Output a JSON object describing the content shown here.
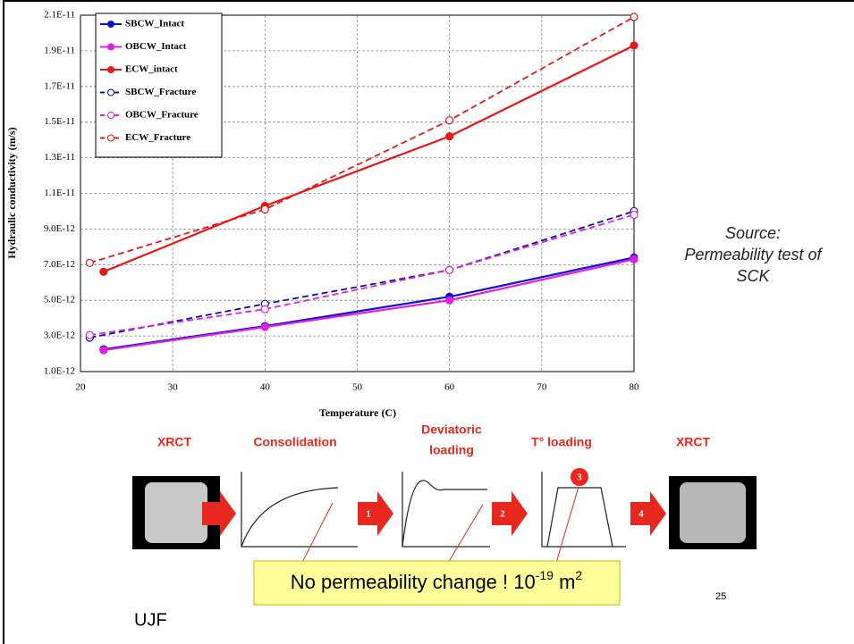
{
  "chart_data": {
    "type": "line",
    "x_label": "Temperature (C)",
    "y_label": "Hydraulic conductivity (m/s)",
    "xlim": [
      20,
      80
    ],
    "xticks": [
      20,
      30,
      40,
      50,
      60,
      70,
      80
    ],
    "ylim": [
      1e-12,
      2.1e-11
    ],
    "yticks": [
      {
        "value": 1e-12,
        "label": "1.0E-12"
      },
      {
        "value": 3e-12,
        "label": "3.0E-12"
      },
      {
        "value": 5e-12,
        "label": "5.0E-12"
      },
      {
        "value": 7e-12,
        "label": "7.0E-12"
      },
      {
        "value": 9e-12,
        "label": "9.0E-12"
      },
      {
        "value": 1.1e-11,
        "label": "1.1E-11"
      },
      {
        "value": 1.3e-11,
        "label": "1.3E-11"
      },
      {
        "value": 1.5e-11,
        "label": "1.5E-11"
      },
      {
        "value": 1.7e-11,
        "label": "1.7E-11"
      },
      {
        "value": 1.9e-11,
        "label": "1.9E-11"
      },
      {
        "value": 2.1e-11,
        "label": "2.1E-11"
      }
    ],
    "grid": true,
    "legend": "upper left",
    "series": [
      {
        "name": "SBCW_Intact",
        "color": "#1010d0",
        "dashed": false,
        "open_markers": false,
        "x": [
          22.5,
          40,
          60,
          80
        ],
        "values": [
          2.25e-12,
          3.55e-12,
          5.2e-12,
          7.4e-12
        ]
      },
      {
        "name": "OBCW_Intact",
        "color": "#e020e0",
        "dashed": false,
        "open_markers": false,
        "x": [
          22.5,
          40,
          60,
          80
        ],
        "values": [
          2.2e-12,
          3.5e-12,
          5e-12,
          7.3e-12
        ]
      },
      {
        "name": "ECW_intact",
        "color": "#e81818",
        "dashed": false,
        "open_markers": false,
        "x": [
          22.5,
          40,
          60,
          80
        ],
        "values": [
          6.6e-12,
          1.03e-11,
          1.42e-11,
          1.93e-11
        ]
      },
      {
        "name": "SBCW_Fracture",
        "color": "#1010a0",
        "dashed": true,
        "open_markers": true,
        "x": [
          21,
          40,
          60,
          80
        ],
        "values": [
          2.9e-12,
          4.8e-12,
          6.7e-12,
          1e-11
        ]
      },
      {
        "name": "OBCW_Fracture",
        "color": "#e020e0",
        "dashed": true,
        "open_markers": true,
        "x": [
          21,
          40,
          60,
          80
        ],
        "values": [
          3.05e-12,
          4.5e-12,
          6.7e-12,
          9.8e-12
        ]
      },
      {
        "name": "ECW_Fracture",
        "color": "#e81818",
        "dashed": true,
        "open_markers": true,
        "x": [
          21,
          40,
          60,
          80
        ],
        "values": [
          7.1e-12,
          1.01e-11,
          1.51e-11,
          2.09e-11
        ]
      }
    ]
  },
  "slide": {
    "source": [
      "Source:",
      "Permeability test of",
      "SCK"
    ],
    "steps": [
      "XRCT",
      "Consolidation",
      "Deviatoric",
      "loading",
      "T° loading",
      "XRCT"
    ],
    "arrow_numbers": [
      "1",
      "2",
      "3",
      "4"
    ],
    "note": [
      "No permeability change ! 10",
      "-19",
      " m",
      "2"
    ],
    "footer": "UJF",
    "page_number": 25
  }
}
